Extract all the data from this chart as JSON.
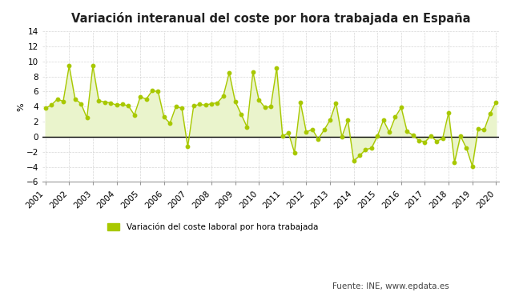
{
  "title": "Variación interanual del coste por hora trabajada en España",
  "ylabel": "%",
  "ylim": [
    -6,
    14
  ],
  "yticks": [
    -6,
    -4,
    -2,
    0,
    2,
    4,
    6,
    8,
    10,
    12,
    14
  ],
  "legend_label": "Variación del coste laboral por hora trabajada",
  "source_label": "Fuente: INE, www.epdata.es",
  "line_color": "#a8c800",
  "fill_color": "#eaf4cc",
  "marker_color": "#a8c800",
  "background_color": "#ffffff",
  "zero_line_color": "#000000",
  "grid_color": "#cccccc",
  "values": [
    3.8,
    4.2,
    5.0,
    4.7,
    9.4,
    5.0,
    4.4,
    2.5,
    9.4,
    4.8,
    4.6,
    4.5,
    4.2,
    4.3,
    4.1,
    2.9,
    5.3,
    5.0,
    6.1,
    6.0,
    2.6,
    1.8,
    4.0,
    3.8,
    -1.3,
    4.1,
    4.3,
    4.2,
    4.4,
    4.5,
    5.4,
    8.5,
    4.7,
    3.0,
    1.3,
    8.6,
    4.9,
    3.9,
    4.0,
    9.1,
    0.1,
    0.5,
    -2.1,
    4.6,
    0.6,
    1.0,
    -0.3,
    0.9,
    2.2,
    4.5,
    0.0,
    2.2,
    -3.2,
    -2.5,
    -1.7,
    -1.5,
    0.1,
    2.2,
    0.6,
    2.6,
    3.9,
    0.7,
    0.2,
    -0.5,
    -0.7,
    0.1,
    -0.6,
    -0.2,
    3.2,
    -3.4,
    0.1,
    -1.5,
    -3.9,
    1.1,
    0.9,
    3.1,
    4.6
  ],
  "num_years": 20,
  "x_tick_labels": [
    "2001",
    "2002",
    "2003",
    "2004",
    "2005",
    "2006",
    "2007",
    "2008",
    "2009",
    "2010",
    "2011",
    "2012",
    "2013",
    "2014",
    "2015",
    "2016",
    "2017",
    "2018",
    "2019",
    "2020"
  ]
}
